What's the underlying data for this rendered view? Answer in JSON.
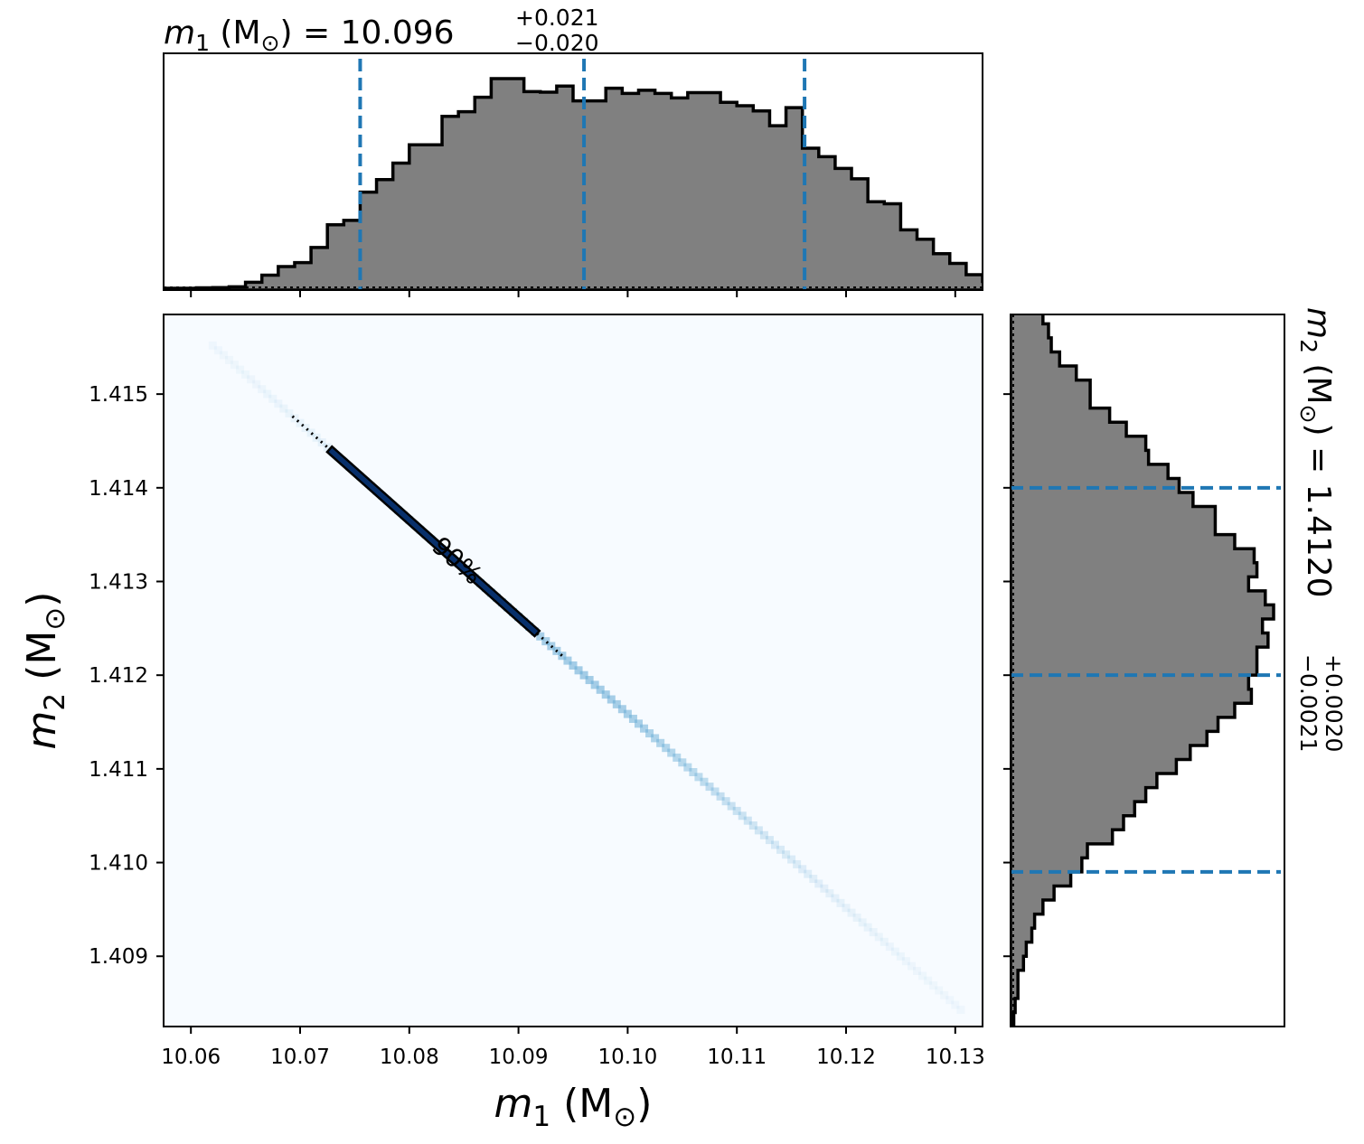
{
  "chart_data": [
    {
      "type": "heatmap",
      "panel": "joint",
      "xlabel_var": "m",
      "xlabel_sub": "1",
      "xlabel_unit": " (M",
      "xlabel_unit_sub": "⊙",
      "xlabel_close": ")",
      "ylabel_var": "m",
      "ylabel_sub": "2",
      "ylabel_unit": " (M",
      "ylabel_unit_sub": "⊙",
      "ylabel_close": ")",
      "xlim": [
        10.0575,
        10.1325
      ],
      "ylim": [
        1.40825,
        1.41585
      ],
      "xticks": [
        "10.06",
        "10.07",
        "10.08",
        "10.09",
        "10.10",
        "10.11",
        "10.12",
        "10.13"
      ],
      "xtick_values": [
        10.06,
        10.07,
        10.08,
        10.09,
        10.1,
        10.11,
        10.12,
        10.13
      ],
      "yticks": [
        "1.409",
        "1.410",
        "1.411",
        "1.412",
        "1.413",
        "1.414",
        "1.415"
      ],
      "ytick_values": [
        1.409,
        1.41,
        1.411,
        1.412,
        1.413,
        1.414,
        1.415
      ],
      "relation": {
        "slope": -0.1035,
        "intercept_at_x": 10.096,
        "y_at_intercept": 1.412
      },
      "density_band": {
        "x_start": 10.062,
        "x_end": 10.131
      },
      "contour": {
        "label": "90%",
        "x_start": 10.0727,
        "x_end": 10.0917,
        "label_x": 10.0843
      },
      "colormap": "Blues",
      "background_color": "#f7fbff"
    },
    {
      "type": "histogram",
      "panel": "m1-marginal",
      "title_var": "m",
      "title_sub": "1",
      "title_unit": " (M",
      "title_unit_sub": "⊙",
      "title_close": ") = 10.096",
      "title_plus": "+0.021",
      "title_minus": "−0.020",
      "median": 10.096,
      "lower": 10.0755,
      "upper": 10.1162,
      "bin_edges_start": 10.0575,
      "bin_width": 0.0015,
      "counts": [
        0,
        0,
        0.2,
        0.3,
        0.7,
        2.8,
        6.2,
        10.2,
        12.1,
        19.2,
        29.9,
        32.0,
        45.3,
        51.2,
        59.0,
        67.6,
        67.6,
        81.0,
        83.2,
        90.0,
        98.8,
        98.8,
        92.7,
        92.4,
        95.3,
        88.3,
        88.3,
        94.3,
        91.8,
        93.3,
        91.8,
        89.7,
        92.2,
        92.2,
        87.6,
        86.0,
        83.6,
        76.6,
        85.1,
        66.0,
        62.0,
        56.5,
        51.6,
        40.8,
        39.8,
        27.5,
        23.1,
        16.3,
        11.7,
        6.4,
        3.2,
        0.3,
        0.3,
        0.3,
        0,
        0
      ],
      "fill_color": "#808080",
      "line_color": "#1f77b4"
    },
    {
      "type": "histogram",
      "panel": "m2-marginal",
      "orientation": "horizontal",
      "title_var": "m",
      "title_sub": "2",
      "title_unit": " (M",
      "title_unit_sub": "⊙",
      "title_close": ") = 1.4120",
      "title_plus": "+0.0020",
      "title_minus": "−0.0021",
      "median": 1.412,
      "lower": 1.4099,
      "upper": 1.414,
      "bin_edges_start": 1.40825,
      "bin_width": 0.00015,
      "counts": [
        0.5,
        1,
        2,
        2,
        4,
        5,
        7,
        8,
        11,
        15,
        21,
        25,
        27,
        36,
        40,
        44,
        48,
        52,
        59,
        64,
        70,
        74,
        80,
        86,
        85,
        88,
        88,
        92,
        90,
        94,
        91,
        85,
        88,
        87,
        80,
        73,
        73,
        65,
        60,
        56,
        49,
        48,
        41,
        35,
        28,
        28,
        23,
        17,
        14,
        13,
        11,
        7,
        5,
        3,
        2,
        1
      ]
    }
  ]
}
